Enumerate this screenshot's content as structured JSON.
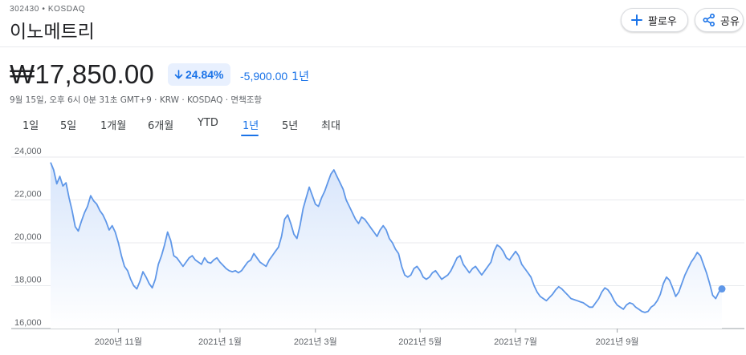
{
  "header": {
    "ticker_line": "302430 • KOSDAQ",
    "company_name": "이노메트리",
    "follow_label": "팔로우",
    "share_label": "공유"
  },
  "quote": {
    "price": "₩17,850.00",
    "pct_change": "24.84%",
    "abs_change": "-5,900.00",
    "period": "1년",
    "meta": "9월 15일, 오후 6시 0분 31초 GMT+9 · KRW · KOSDAQ · 면책조항"
  },
  "colors": {
    "accent": "#1a73e8",
    "line": "#5f97e8",
    "area_top": "#d7e5fb",
    "area_bottom": "#ffffff"
  },
  "tabs": [
    {
      "label": "1일",
      "active": false
    },
    {
      "label": "5일",
      "active": false
    },
    {
      "label": "1개월",
      "active": false
    },
    {
      "label": "6개월",
      "active": false
    },
    {
      "label": "YTD",
      "active": false
    },
    {
      "label": "1년",
      "active": true
    },
    {
      "label": "5년",
      "active": false
    },
    {
      "label": "최대",
      "active": false
    }
  ],
  "chart_data": {
    "type": "area",
    "y_ticks": [
      "16,000",
      "18,000",
      "20,000",
      "22,000",
      "24,000"
    ],
    "ylim": [
      16000,
      24000
    ],
    "x_tick_labels": [
      "2020년 11월",
      "2021년 1월",
      "2021년 3월",
      "2021년 5월",
      "2021년 7월",
      "2021년 9월"
    ],
    "x_tick_index": [
      22,
      55,
      86,
      120,
      151,
      184
    ],
    "grid": true,
    "series": [
      {
        "values": [
          23750,
          23400,
          22750,
          23100,
          22650,
          22800,
          22100,
          21500,
          20750,
          20550,
          21000,
          21400,
          21700,
          22200,
          21950,
          21800,
          21500,
          21300,
          21000,
          20600,
          20800,
          20500,
          20000,
          19400,
          18900,
          18700,
          18300,
          18000,
          17850,
          18200,
          18650,
          18400,
          18100,
          17900,
          18300,
          19000,
          19400,
          19900,
          20500,
          20100,
          19400,
          19300,
          19100,
          18900,
          19100,
          19300,
          19400,
          19200,
          19100,
          19000,
          19300,
          19100,
          19050,
          19200,
          19300,
          19100,
          18950,
          18800,
          18700,
          18650,
          18700,
          18600,
          18700,
          18900,
          19100,
          19200,
          19500,
          19300,
          19100,
          19000,
          18900,
          19200,
          19400,
          19600,
          19800,
          20300,
          21100,
          21300,
          20900,
          20400,
          20200,
          20800,
          21600,
          22100,
          22600,
          22200,
          21800,
          21700,
          22100,
          22400,
          22800,
          23200,
          23400,
          23100,
          22800,
          22500,
          22000,
          21700,
          21400,
          21100,
          20900,
          21200,
          21100,
          20900,
          20700,
          20500,
          20300,
          20600,
          20800,
          20600,
          20200,
          20000,
          19700,
          19500,
          18900,
          18500,
          18400,
          18500,
          18800,
          18900,
          18700,
          18400,
          18300,
          18400,
          18600,
          18700,
          18500,
          18300,
          18400,
          18500,
          18700,
          19000,
          19300,
          19400,
          19000,
          18800,
          18600,
          18800,
          18900,
          18700,
          18500,
          18700,
          18900,
          19100,
          19600,
          19900,
          19800,
          19600,
          19300,
          19200,
          19400,
          19600,
          19400,
          19000,
          18800,
          18600,
          18400,
          18000,
          17700,
          17500,
          17400,
          17300,
          17450,
          17600,
          17800,
          17950,
          17850,
          17700,
          17550,
          17400,
          17350,
          17300,
          17250,
          17200,
          17100,
          17000,
          17000,
          17200,
          17400,
          17700,
          17900,
          17800,
          17600,
          17300,
          17100,
          17000,
          16900,
          17100,
          17200,
          17150,
          17000,
          16900,
          16800,
          16750,
          16800,
          17000,
          17100,
          17300,
          17600,
          18100,
          18400,
          18250,
          17900,
          17500,
          17700,
          18100,
          18500,
          18800,
          19100,
          19300,
          19550,
          19400,
          19000,
          18600,
          18100,
          17550,
          17400,
          17700,
          17850
        ]
      }
    ]
  }
}
